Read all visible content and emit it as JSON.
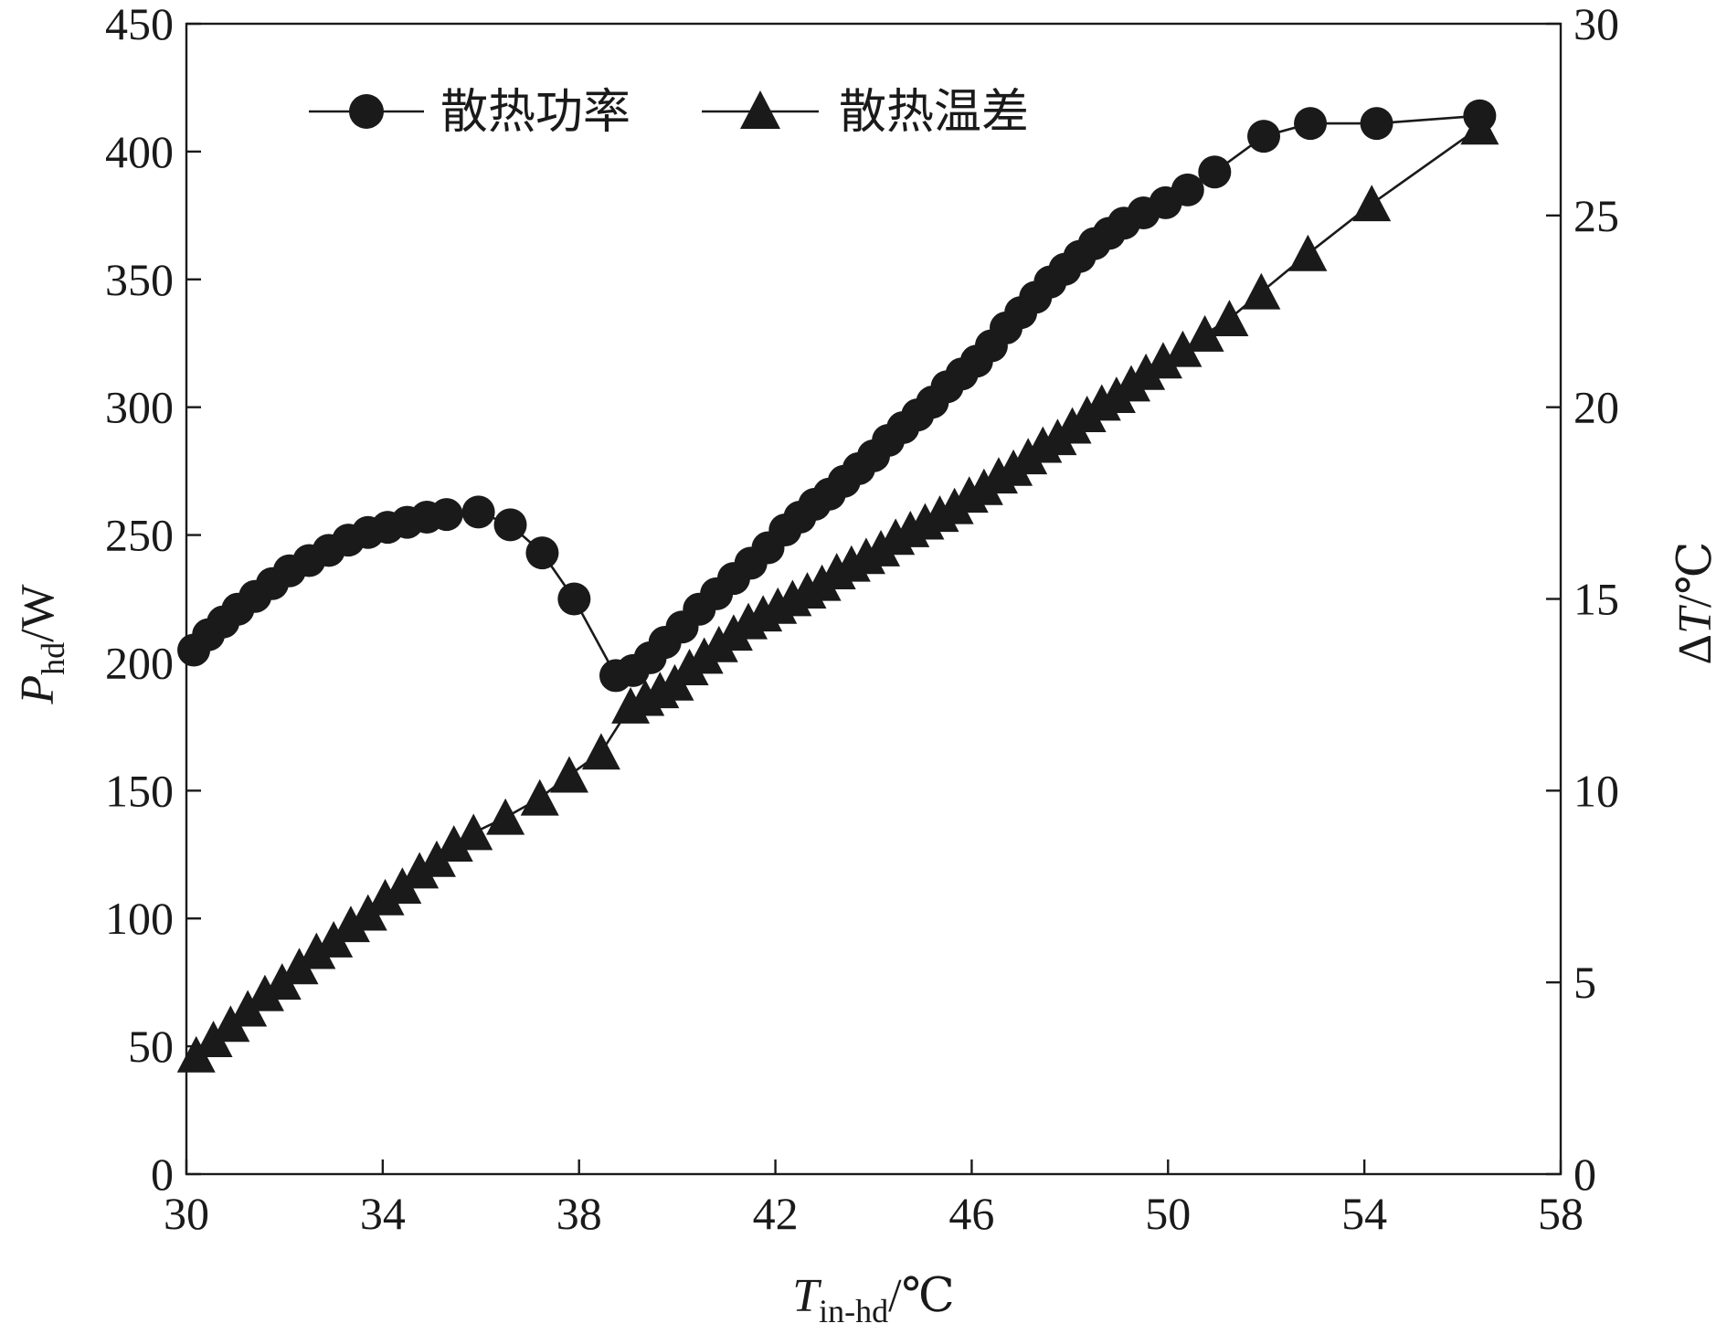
{
  "chart_data": {
    "type": "line",
    "x_axis": {
      "label": "T",
      "label_sub": "in-hd",
      "label_unit": "/℃",
      "ticks": [
        "30",
        "34",
        "38",
        "42",
        "46",
        "50",
        "54",
        "58"
      ],
      "range": [
        30,
        58
      ]
    },
    "y_left": {
      "label": "P",
      "label_sub": "hd",
      "label_unit": "/W",
      "ticks": [
        "0",
        "50",
        "100",
        "150",
        "200",
        "250",
        "300",
        "350",
        "400",
        "450"
      ],
      "range": [
        0,
        450
      ]
    },
    "y_right": {
      "label": "ΔT/℃",
      "label_prefix": "Δ",
      "label_main": "T",
      "label_unit": "/℃",
      "ticks": [
        "0",
        "5",
        "10",
        "15",
        "20",
        "25",
        "30"
      ],
      "range": [
        0,
        30
      ]
    },
    "legend": {
      "position": "top-left",
      "items": [
        {
          "name": "散热功率",
          "marker": "circle"
        },
        {
          "name": "散热温差",
          "marker": "triangle"
        }
      ]
    },
    "grid": false,
    "series": [
      {
        "name": "散热功率",
        "axis": "left",
        "marker": "circle",
        "color": "#1a1a1a",
        "x": [
          30.15,
          30.45,
          30.75,
          31.05,
          31.4,
          31.75,
          32.1,
          32.5,
          32.9,
          33.3,
          33.7,
          34.1,
          34.5,
          34.9,
          35.3,
          35.95,
          36.6,
          37.25,
          37.9,
          38.75,
          39.1,
          39.45,
          39.75,
          40.1,
          40.45,
          40.8,
          41.15,
          41.5,
          41.85,
          42.2,
          42.5,
          42.8,
          43.1,
          43.4,
          43.7,
          44.0,
          44.3,
          44.6,
          44.9,
          45.2,
          45.5,
          45.8,
          46.1,
          46.4,
          46.7,
          47.0,
          47.3,
          47.6,
          47.9,
          48.2,
          48.5,
          48.8,
          49.1,
          49.5,
          49.95,
          50.4,
          50.95,
          51.95,
          52.9,
          54.25,
          56.35
        ],
        "y": [
          205,
          211,
          216,
          221,
          226,
          231,
          236,
          240,
          244,
          248,
          251,
          253,
          255,
          257,
          258,
          259,
          254,
          243,
          225,
          195,
          197,
          202,
          208,
          214,
          221,
          227,
          233,
          239,
          245,
          252,
          257,
          262,
          266,
          271,
          276,
          281,
          287,
          292,
          297,
          302,
          308,
          313,
          318,
          324,
          331,
          337,
          343,
          349,
          354,
          359,
          364,
          368,
          372,
          376,
          380,
          385,
          392,
          406,
          411,
          411,
          414
        ]
      },
      {
        "name": "散热温差",
        "axis": "right",
        "marker": "triangle",
        "color": "#1a1a1a",
        "x": [
          30.2,
          30.55,
          30.9,
          31.25,
          31.6,
          31.95,
          32.3,
          32.65,
          33.0,
          33.35,
          33.7,
          34.05,
          34.4,
          34.75,
          35.1,
          35.45,
          35.85,
          36.5,
          37.2,
          37.8,
          38.45,
          39.05,
          39.35,
          39.65,
          39.95,
          40.25,
          40.55,
          40.85,
          41.15,
          41.45,
          41.75,
          42.05,
          42.35,
          42.65,
          42.95,
          43.25,
          43.55,
          43.85,
          44.15,
          44.45,
          44.75,
          45.05,
          45.35,
          45.65,
          45.95,
          46.25,
          46.55,
          46.85,
          47.15,
          47.45,
          47.75,
          48.05,
          48.35,
          48.65,
          48.95,
          49.25,
          49.55,
          49.9,
          50.3,
          50.75,
          51.25,
          51.9,
          52.85,
          54.15,
          56.35
        ],
        "y": [
          3.1,
          3.5,
          3.9,
          4.3,
          4.7,
          5.0,
          5.4,
          5.8,
          6.1,
          6.5,
          6.8,
          7.2,
          7.5,
          7.9,
          8.2,
          8.6,
          8.9,
          9.3,
          9.8,
          10.4,
          11.0,
          12.2,
          12.4,
          12.6,
          12.8,
          13.2,
          13.5,
          13.8,
          14.1,
          14.4,
          14.6,
          14.8,
          15.0,
          15.2,
          15.4,
          15.7,
          15.9,
          16.1,
          16.3,
          16.6,
          16.8,
          17.0,
          17.2,
          17.4,
          17.7,
          17.9,
          18.2,
          18.4,
          18.7,
          19.0,
          19.2,
          19.5,
          19.8,
          20.1,
          20.3,
          20.6,
          20.9,
          21.2,
          21.5,
          21.9,
          22.3,
          23.0,
          24.0,
          25.3,
          27.3
        ]
      }
    ]
  }
}
